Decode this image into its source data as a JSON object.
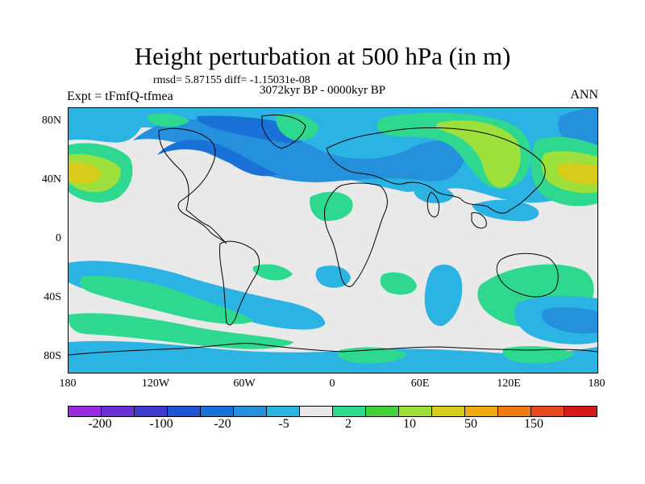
{
  "figure": {
    "title": "Height perturbation at 500 hPa (in m)",
    "stats": "rmsd= 5.87155 diff= -1.15031e-08",
    "experiment": "Expt = tFmfQ-tfmea",
    "period": "3072kyr BP - 0000kyr BP",
    "season": "ANN"
  },
  "axes": {
    "x_ticks": [
      "180",
      "120W",
      "60W",
      "0",
      "60E",
      "120E",
      "180"
    ],
    "y_ticks": [
      "80N",
      "40N",
      "0",
      "40S",
      "80S"
    ]
  },
  "colorbar": {
    "colors": [
      "#9a2ce0",
      "#6a2fd6",
      "#3f3bd1",
      "#1f55d3",
      "#1a72d9",
      "#2591dd",
      "#2bb4e3",
      "#e9e9e9",
      "#2ed88f",
      "#42d23a",
      "#9ee03b",
      "#d7cc1b",
      "#f0a90e",
      "#f27a15",
      "#e8481d",
      "#d61a1a"
    ],
    "labels": [
      "-200",
      "-100",
      "-20",
      "-5",
      "2",
      "10",
      "50",
      "150"
    ]
  },
  "colors": {
    "background": "#e9e9e9",
    "coast": "#000000"
  }
}
